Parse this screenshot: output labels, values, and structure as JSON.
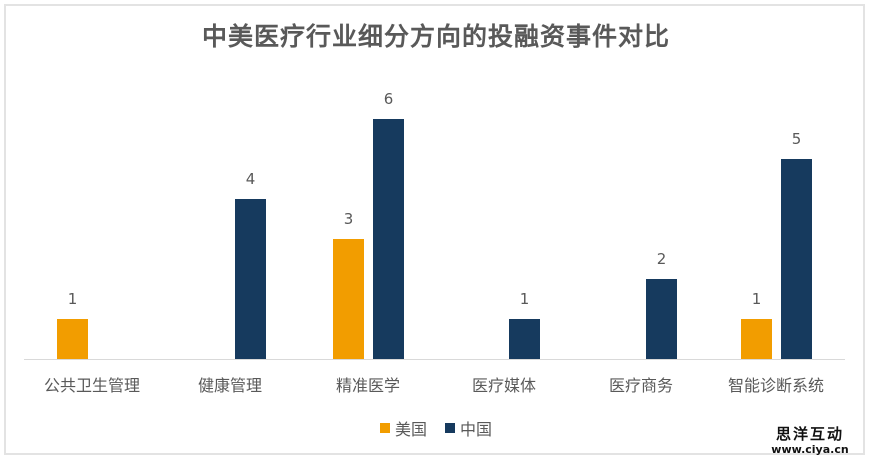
{
  "chart_data": {
    "type": "bar",
    "title": "中美医疗行业细分方向的投融资事件对比",
    "xlabel": "",
    "ylabel": "",
    "ylim": [
      0,
      6
    ],
    "grid": false,
    "legend_position": "bottom",
    "categories": [
      "公共卫生管理",
      "健康管理",
      "精准医学",
      "医疗媒体",
      "医疗商务",
      "智能诊断系统"
    ],
    "series": [
      {
        "name": "美国",
        "color": "#f29d00",
        "values": [
          1,
          0,
          3,
          0,
          0,
          1
        ]
      },
      {
        "name": "中国",
        "color": "#163a5e",
        "values": [
          0,
          4,
          6,
          1,
          2,
          5
        ]
      }
    ],
    "data_labels": {
      "美国": [
        "1",
        "",
        "3",
        "",
        "",
        "1"
      ],
      "中国": [
        "",
        "4",
        "6",
        "1",
        "2",
        "5"
      ]
    }
  },
  "legend": {
    "items": [
      {
        "label": "美国",
        "color": "#f29d00"
      },
      {
        "label": "中国",
        "color": "#163a5e"
      }
    ]
  },
  "watermark": {
    "name": "思洋互动",
    "url": "www.ciya.cn"
  }
}
